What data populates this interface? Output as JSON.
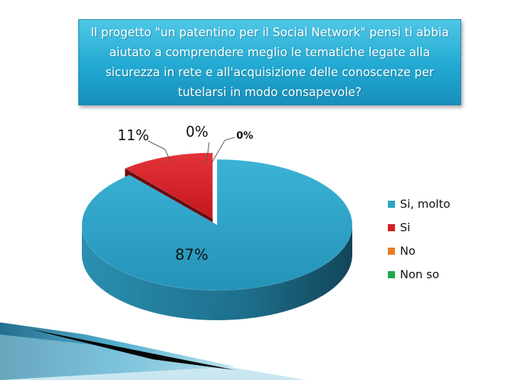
{
  "title": "Il progetto \"un patentino per il Social Network\" pensi ti abbia aiutato a comprendere meglio le tematiche legate alla sicurezza in rete e all'acquisizione delle conoscenze per tutelarsi in modo consapevole?",
  "chart_data": {
    "type": "pie",
    "title": "Il progetto \"un patentino per il Social Network\" pensi ti abbia aiutato a comprendere meglio le tematiche legate alla sicurezza in rete e all'acquisizione delle conoscenze per tutelarsi in modo consapevole?",
    "categories": [
      "Si, molto",
      "Si",
      "No",
      "Non so"
    ],
    "values": [
      87,
      11,
      0,
      0
    ],
    "data_labels": [
      "87%",
      "11%",
      "0%",
      "0%"
    ],
    "colors": [
      "#2aa3c6",
      "#d42027",
      "#ec7a21",
      "#1fa94a"
    ],
    "legend_position": "right",
    "exploded": "Si"
  }
}
